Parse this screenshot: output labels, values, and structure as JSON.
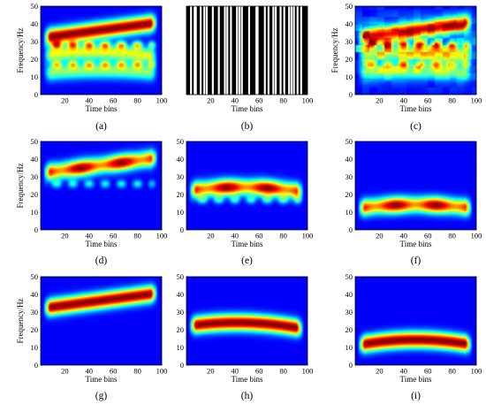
{
  "colors": {
    "jet_low": "#00008f",
    "jet_mid": "#00ffff",
    "jet_high": "#ff0000",
    "mask_black": "#000000",
    "mask_white": "#ffffff"
  },
  "chart_data": [
    {
      "type": "heatmap",
      "caption": "(a)",
      "xlabel": "Time bins",
      "ylabel": "Frequency/Hz",
      "xlim": [
        0,
        100
      ],
      "ylim": [
        0,
        50
      ],
      "xticks": [
        "20",
        "40",
        "60",
        "80",
        "100"
      ],
      "yticks": [
        "0",
        "10",
        "20",
        "30",
        "40",
        "50"
      ],
      "colormap": "jet",
      "components": [
        {
          "kind": "linear_chirp",
          "f_start": 32,
          "f_end": 41,
          "strength": 1.0
        },
        {
          "kind": "curved_tone",
          "f_start": 22,
          "f_peak": 24,
          "f_end": 21,
          "strength": 0.55
        },
        {
          "kind": "curved_tone",
          "f_start": 12,
          "f_peak": 13.5,
          "f_end": 12,
          "strength": 0.45
        }
      ],
      "cross_terms": [
        {
          "f": 28,
          "strength": 0.5
        },
        {
          "f": 17,
          "strength": 0.4
        }
      ]
    },
    {
      "type": "mask",
      "caption": "(b)",
      "xlabel": "Time bins",
      "ylabel": "",
      "xlim": [
        0,
        100
      ],
      "ylim": [
        0,
        50
      ],
      "xticks": [
        "20",
        "40",
        "60",
        "80",
        "100"
      ],
      "yticks": [],
      "white_bins": [
        3,
        6,
        7,
        11,
        14,
        16,
        21,
        26,
        31,
        33,
        36,
        41,
        43,
        45,
        51,
        57,
        58,
        64,
        67,
        71,
        73,
        77,
        80,
        84,
        86,
        88,
        91,
        94
      ]
    },
    {
      "type": "heatmap",
      "caption": "(c)",
      "xlabel": "Time bins",
      "ylabel": "Frequency/Hz",
      "xlim": [
        0,
        100
      ],
      "ylim": [
        0,
        50
      ],
      "xticks": [
        "20",
        "40",
        "60",
        "80",
        "100"
      ],
      "yticks": [
        "0",
        "10",
        "20",
        "30",
        "40",
        "50"
      ],
      "colormap": "jet",
      "components": [
        {
          "kind": "linear_chirp",
          "f_start": 32,
          "f_end": 41,
          "strength": 0.85
        },
        {
          "kind": "curved_tone",
          "f_start": 22,
          "f_peak": 24,
          "f_end": 21,
          "strength": 0.45
        },
        {
          "kind": "curved_tone",
          "f_start": 12,
          "f_peak": 13.5,
          "f_end": 12,
          "strength": 0.4
        }
      ],
      "cross_terms": [
        {
          "f": 28,
          "strength": 0.5
        },
        {
          "f": 17,
          "strength": 0.35
        }
      ],
      "noisy": true
    },
    {
      "type": "heatmap",
      "caption": "(d)",
      "xlabel": "Time bins",
      "ylabel": "Frequency/Hz",
      "xlim": [
        0,
        100
      ],
      "ylim": [
        0,
        50
      ],
      "xticks": [
        "20",
        "40",
        "60",
        "80",
        "100"
      ],
      "yticks": [
        "0",
        "10",
        "20",
        "30",
        "40",
        "50"
      ],
      "colormap": "jet",
      "components": [
        {
          "kind": "linear_chirp",
          "f_start": 32,
          "f_end": 41,
          "strength": 1.0,
          "wavy": true
        }
      ],
      "cross_terms": [
        {
          "f": 26,
          "strength": 0.3
        }
      ]
    },
    {
      "type": "heatmap",
      "caption": "(e)",
      "xlabel": "Time bins",
      "ylabel": "",
      "xlim": [
        0,
        100
      ],
      "ylim": [
        0,
        50
      ],
      "xticks": [
        "20",
        "40",
        "60",
        "80",
        "100"
      ],
      "yticks": [
        "0",
        "10",
        "20",
        "30",
        "40",
        "50"
      ],
      "colormap": "jet",
      "components": [
        {
          "kind": "curved_tone",
          "f_start": 22,
          "f_peak": 24,
          "f_end": 21,
          "strength": 1.0,
          "wavy": true
        }
      ],
      "cross_terms": [
        {
          "f": 17,
          "strength": 0.3
        }
      ]
    },
    {
      "type": "heatmap",
      "caption": "(f)",
      "xlabel": "Time bins",
      "ylabel": "",
      "xlim": [
        0,
        100
      ],
      "ylim": [
        0,
        50
      ],
      "xticks": [
        "20",
        "40",
        "60",
        "80",
        "100"
      ],
      "yticks": [
        "0",
        "10",
        "20",
        "30",
        "40",
        "50"
      ],
      "colormap": "jet",
      "components": [
        {
          "kind": "curved_tone",
          "f_start": 12,
          "f_peak": 14,
          "f_end": 12,
          "strength": 1.0,
          "wavy": true
        }
      ],
      "cross_terms": []
    },
    {
      "type": "heatmap",
      "caption": "(g)",
      "xlabel": "Time bins",
      "ylabel": "Frequency/Hz",
      "xlim": [
        0,
        100
      ],
      "ylim": [
        0,
        50
      ],
      "xticks": [
        "20",
        "40",
        "60",
        "80",
        "100"
      ],
      "yticks": [
        "0",
        "10",
        "20",
        "30",
        "40",
        "50"
      ],
      "colormap": "jet",
      "components": [
        {
          "kind": "linear_chirp",
          "f_start": 32,
          "f_end": 41,
          "strength": 1.0
        }
      ],
      "cross_terms": []
    },
    {
      "type": "heatmap",
      "caption": "(h)",
      "xlabel": "Time bins",
      "ylabel": "",
      "xlim": [
        0,
        100
      ],
      "ylim": [
        0,
        50
      ],
      "xticks": [
        "20",
        "40",
        "60",
        "80",
        "100"
      ],
      "yticks": [
        "0",
        "10",
        "20",
        "30",
        "40",
        "50"
      ],
      "colormap": "jet",
      "components": [
        {
          "kind": "curved_tone",
          "f_start": 22,
          "f_peak": 24,
          "f_end": 20,
          "strength": 1.0
        }
      ],
      "cross_terms": []
    },
    {
      "type": "heatmap",
      "caption": "(i)",
      "xlabel": "Time bins",
      "ylabel": "",
      "xlim": [
        0,
        100
      ],
      "ylim": [
        0,
        50
      ],
      "xticks": [
        "20",
        "40",
        "60",
        "80",
        "100"
      ],
      "yticks": [
        "0",
        "10",
        "20",
        "30",
        "40",
        "50"
      ],
      "colormap": "jet",
      "components": [
        {
          "kind": "curved_tone",
          "f_start": 11,
          "f_peak": 14,
          "f_end": 11,
          "strength": 1.0
        }
      ],
      "cross_terms": []
    }
  ]
}
